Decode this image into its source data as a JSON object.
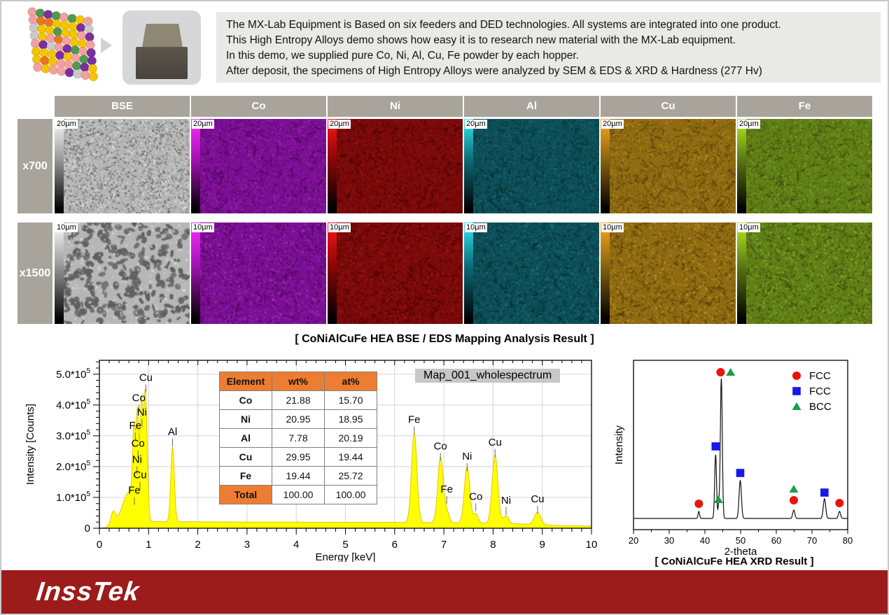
{
  "intro": {
    "bg": "#e9e9e7",
    "lines": [
      "The MX-Lab Equipment is Based on six feeders and DED technologies. All systems are integrated into one product.",
      "This High Entropy Alloys demo shows how easy it is to research new material with the MX-Lab equipment.",
      "In this demo, we supplied pure Co, Ni, Al, Cu, Fe powder by each hopper.",
      "After deposit, the specimens of High Entropy Alloys were analyzed by SEM & EDS & XRD & Hardness (277 Hv)"
    ]
  },
  "atom_model": {
    "palette": [
      "#f2a0a0",
      "#f5c400",
      "#7b2f9e",
      "#c9c9c9",
      "#4f9a4f",
      "#e87820"
    ]
  },
  "map_grid": {
    "header_bg": "#a8a49c",
    "columns": [
      {
        "label": "BSE",
        "bar": [
          "#ffffff",
          "#9a9a9a"
        ],
        "base": "#b6b6b6",
        "dark": "#5f5f5f",
        "light": "#e3e3e3"
      },
      {
        "label": "Co",
        "bar": [
          "#ff2bff",
          "#a412b4"
        ],
        "base": "#7d0f96",
        "dark": "#43064e",
        "light": "#a63ec0"
      },
      {
        "label": "Ni",
        "bar": [
          "#ff1414",
          "#8f0606"
        ],
        "base": "#7c0a0a",
        "dark": "#3f0202",
        "light": "#a81e1e"
      },
      {
        "label": "Al",
        "bar": [
          "#2ee8f4",
          "#0d6e7a"
        ],
        "base": "#0e4f58",
        "dark": "#062a30",
        "light": "#1b7f8d"
      },
      {
        "label": "Cu",
        "bar": [
          "#ffa81e",
          "#8a6410"
        ],
        "base": "#8f6b12",
        "dark": "#4d3706",
        "light": "#caa02a"
      },
      {
        "label": "Fe",
        "bar": [
          "#b8f01e",
          "#5c7a12"
        ],
        "base": "#617f17",
        "dark": "#31430a",
        "light": "#93bb2e"
      }
    ],
    "rows": [
      {
        "label": "x700",
        "scale": "20µm"
      },
      {
        "label": "x1500",
        "scale": "10µm"
      }
    ]
  },
  "captions": {
    "mapping": "[ CoNiAlCuFe HEA BSE / EDS Mapping Analysis Result ]",
    "xrd": "[ CoNiAlCuFe HEA XRD Result ]"
  },
  "eds": {
    "chart_data": {
      "type": "area",
      "title": "Map_001_wholespectrum",
      "xlabel": "Energy [keV]",
      "ylabel": "Intensity [Counts]",
      "xlim": [
        0,
        10
      ],
      "ylim": [
        0,
        545000
      ],
      "x_ticks": [
        0,
        1,
        2,
        3,
        4,
        5,
        6,
        7,
        8,
        9,
        10
      ],
      "y_ticks": [
        0,
        100000,
        200000,
        300000,
        400000,
        500000
      ],
      "y_tick_labels": [
        "0",
        "1.0*10^5",
        "2.0*10^5",
        "3.0*10^5",
        "4.0*10^5",
        "5.0*10^5"
      ],
      "grid": true,
      "fill_color": "#ffff00",
      "line_color": "#e0c800",
      "peaks": [
        [
          0.28,
          40000,
          0.045
        ],
        [
          0.6,
          95000,
          0.12
        ],
        [
          0.705,
          250000,
          0.03
        ],
        [
          0.776,
          320000,
          0.026
        ],
        [
          0.851,
          350000,
          0.026
        ],
        [
          0.932,
          425000,
          0.038
        ],
        [
          1.487,
          242000,
          0.036
        ],
        [
          6.398,
          292000,
          0.055
        ],
        [
          6.93,
          212000,
          0.055
        ],
        [
          7.058,
          36000,
          0.05
        ],
        [
          7.472,
          182000,
          0.055
        ],
        [
          7.649,
          30000,
          0.05
        ],
        [
          8.04,
          222000,
          0.058
        ],
        [
          8.264,
          26000,
          0.055
        ],
        [
          8.904,
          40000,
          0.065
        ]
      ],
      "baseline": [
        [
          0,
          0
        ],
        [
          0.12,
          2000
        ],
        [
          0.4,
          22000
        ],
        [
          1.8,
          21000
        ],
        [
          3,
          20000
        ],
        [
          6,
          19000
        ],
        [
          7.5,
          17000
        ],
        [
          8.6,
          14000
        ],
        [
          9.3,
          9000
        ],
        [
          10,
          7000
        ]
      ],
      "peak_labels": [
        {
          "t": "Cu",
          "x": 0.945,
          "y": 478000
        },
        {
          "t": "Co",
          "x": 0.8,
          "y": 412000
        },
        {
          "t": "Ni",
          "x": 0.865,
          "y": 366000
        },
        {
          "t": "Fe",
          "x": 0.73,
          "y": 322000
        },
        {
          "t": "Co",
          "x": 0.785,
          "y": 264000
        },
        {
          "t": "Ni",
          "x": 0.765,
          "y": 212000
        },
        {
          "t": "Cu",
          "x": 0.825,
          "y": 162000
        },
        {
          "t": "Fe",
          "x": 0.71,
          "y": 112000
        },
        {
          "t": "Al",
          "x": 1.487,
          "y": 302000
        },
        {
          "t": "Fe",
          "x": 6.398,
          "y": 342000
        },
        {
          "t": "Co",
          "x": 6.93,
          "y": 256000
        },
        {
          "t": "Fe",
          "x": 7.058,
          "y": 116000
        },
        {
          "t": "Ni",
          "x": 7.472,
          "y": 222000
        },
        {
          "t": "Co",
          "x": 7.649,
          "y": 92000
        },
        {
          "t": "Cu",
          "x": 8.04,
          "y": 268000
        },
        {
          "t": "Ni",
          "x": 8.264,
          "y": 80000
        },
        {
          "t": "Cu",
          "x": 8.904,
          "y": 84000
        }
      ]
    },
    "table": {
      "header_bg": "#ED7D31",
      "headers": [
        "Element",
        "wt%",
        "at%"
      ],
      "rows": [
        [
          "Co",
          "21.88",
          "15.70"
        ],
        [
          "Ni",
          "20.95",
          "18.95"
        ],
        [
          "Al",
          "7.78",
          "20.19"
        ],
        [
          "Cu",
          "29.95",
          "19.44"
        ],
        [
          "Fe",
          "19.44",
          "25.72"
        ],
        [
          "Total",
          "100.00",
          "100.00"
        ]
      ]
    }
  },
  "xrd": {
    "chart_data": {
      "type": "line",
      "xlabel": "2-theta",
      "ylabel": "Intensity",
      "xlim": [
        20,
        80
      ],
      "x_ticks": [
        20,
        30,
        40,
        50,
        60,
        70,
        80
      ],
      "line_color": "#111111",
      "peaks": [
        [
          38.3,
          0.05,
          0.22
        ],
        [
          43.0,
          0.455,
          0.26
        ],
        [
          43.9,
          0.1,
          0.2
        ],
        [
          44.6,
          1.0,
          0.27
        ],
        [
          49.9,
          0.27,
          0.33
        ],
        [
          64.9,
          0.06,
          0.3
        ],
        [
          73.5,
          0.14,
          0.34
        ],
        [
          77.7,
          0.05,
          0.3
        ]
      ],
      "markers": [
        {
          "x": 38.3,
          "y": 0.105,
          "m": "circle"
        },
        {
          "x": 43.0,
          "y": 0.515,
          "m": "square"
        },
        {
          "x": 43.8,
          "y": 0.135,
          "m": "triangle"
        },
        {
          "x": 44.4,
          "y": 1.045,
          "m": "circle"
        },
        {
          "x": 47.2,
          "y": 1.045,
          "m": "triangle"
        },
        {
          "x": 49.9,
          "y": 0.325,
          "m": "square"
        },
        {
          "x": 64.9,
          "y": 0.21,
          "m": "triangle"
        },
        {
          "x": 64.9,
          "y": 0.13,
          "m": "circle"
        },
        {
          "x": 73.5,
          "y": 0.185,
          "m": "square"
        },
        {
          "x": 77.7,
          "y": 0.11,
          "m": "circle"
        }
      ],
      "marker_colors": {
        "circle": "#e8150d",
        "square": "#1717e8",
        "triangle": "#18a048"
      },
      "legend": [
        {
          "label": "FCC",
          "m": "circle"
        },
        {
          "label": "FCC",
          "m": "square"
        },
        {
          "label": "BCC",
          "m": "triangle"
        }
      ],
      "legend_position": "top-right"
    }
  },
  "footer": {
    "logo": "InssTek",
    "bg": "#9c1b1b"
  }
}
